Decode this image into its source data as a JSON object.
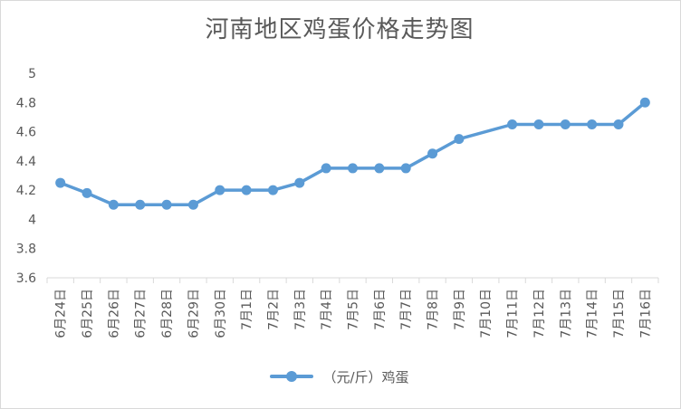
{
  "chart_data": {
    "type": "line",
    "title": "河南地区鸡蛋价格走势图",
    "categories": [
      "6月24日",
      "6月25日",
      "6月26日",
      "6月27日",
      "6月28日",
      "6月29日",
      "6月30日",
      "7月1日",
      "7月2日",
      "7月3日",
      "7月4日",
      "7月5日",
      "7月6日",
      "7月7日",
      "7月8日",
      "7月9日",
      "7月10日",
      "7月11日",
      "7月12日",
      "7月13日",
      "7月14日",
      "7月15日",
      "7月16日"
    ],
    "series": [
      {
        "name": "（元/斤）鸡蛋",
        "values": [
          4.25,
          4.18,
          4.1,
          4.1,
          4.1,
          4.1,
          4.2,
          4.2,
          4.2,
          4.25,
          4.35,
          4.35,
          4.35,
          4.35,
          4.45,
          4.55,
          null,
          4.65,
          4.65,
          4.65,
          4.65,
          4.65,
          4.8
        ],
        "color": "#5b9bd5"
      }
    ],
    "ylim": [
      3.6,
      5
    ],
    "yticks": [
      "3.6",
      "3.8",
      "4",
      "4.2",
      "4.4",
      "4.6",
      "4.8",
      "5"
    ],
    "grid": false,
    "legend_position": "bottom",
    "xlabel": "",
    "ylabel": ""
  }
}
